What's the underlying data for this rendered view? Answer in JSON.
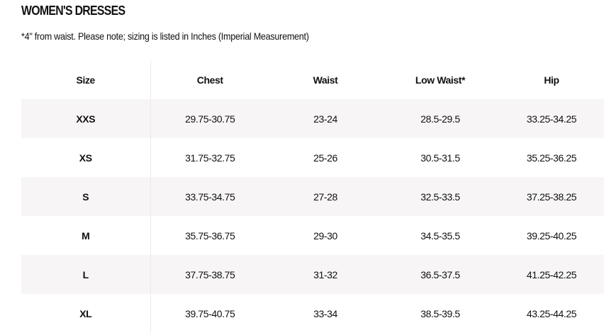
{
  "header": {
    "title": "WOMEN'S DRESSES",
    "note": "*4\" from waist. Please note; sizing is listed in Inches (Imperial Measurement)"
  },
  "table": {
    "columns": [
      "Size",
      "Chest",
      "Waist",
      "Low Waist*",
      "Hip"
    ],
    "rows": [
      [
        "XXS",
        "29.75-30.75",
        "23-24",
        "28.5-29.5",
        "33.25-34.25"
      ],
      [
        "XS",
        "31.75-32.75",
        "25-26",
        "30.5-31.5",
        "35.25-36.25"
      ],
      [
        "S",
        "33.75-34.75",
        "27-28",
        "32.5-33.5",
        "37.25-38.25"
      ],
      [
        "M",
        "35.75-36.75",
        "29-30",
        "34.5-35.5",
        "39.25-40.25"
      ],
      [
        "L",
        "37.75-38.75",
        "31-32",
        "36.5-37.5",
        "41.25-42.25"
      ],
      [
        "XL",
        "39.75-40.75",
        "33-34",
        "38.5-39.5",
        "43.25-44.25"
      ]
    ]
  }
}
